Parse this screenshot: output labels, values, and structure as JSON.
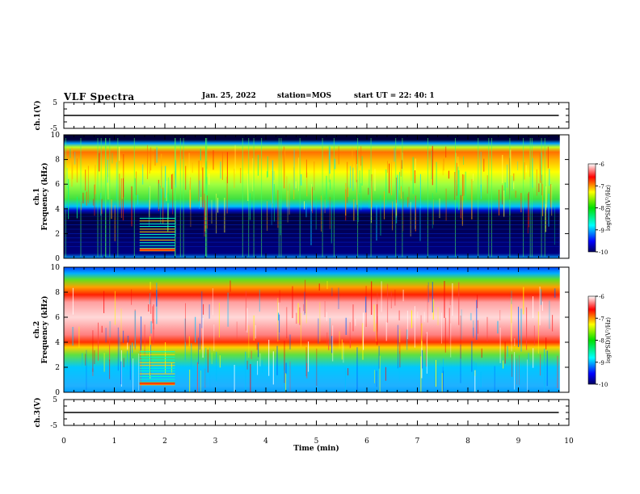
{
  "header": {
    "title": "VLF Spectra",
    "date": "Jan. 25, 2022",
    "station": "station=MOS",
    "start": "start UT =  22: 40: 1"
  },
  "chart_data": [
    {
      "type": "line",
      "ylabel": "ch.1(V)",
      "yticks": [
        "5",
        "-5"
      ],
      "ylim": [
        -5,
        5
      ],
      "x": [
        0,
        1,
        2,
        3,
        4,
        5,
        6,
        7,
        8,
        9,
        9.8
      ],
      "values": [
        0,
        0,
        0,
        0,
        0,
        0,
        0,
        0,
        0,
        0,
        0
      ]
    },
    {
      "type": "heatmap",
      "ylabel": "ch.1\nFrequency (kHz)",
      "ylim": [
        0,
        10
      ],
      "yticks": [
        "0",
        "2",
        "4",
        "6",
        "8",
        "10"
      ],
      "colorbar": {
        "label": "log(PSD)(V²/Hz)",
        "ticks": [
          "-6",
          "-7",
          "-8",
          "-9",
          "-10"
        ],
        "range": [
          -10,
          -6
        ]
      }
    },
    {
      "type": "heatmap",
      "ylabel": "ch.2\nFrequency (kHz)",
      "ylim": [
        0,
        10
      ],
      "yticks": [
        "0",
        "2",
        "4",
        "6",
        "8",
        "10"
      ],
      "colorbar": {
        "label": "log(PSD)(V²/Hz)",
        "ticks": [
          "-6",
          "-7",
          "-8",
          "-9",
          "-10"
        ],
        "range": [
          -10,
          -6
        ]
      }
    },
    {
      "type": "line",
      "ylabel": "ch.3(V)",
      "yticks": [
        "5",
        "-5"
      ],
      "ylim": [
        -5,
        5
      ],
      "x": [
        0,
        1,
        2,
        3,
        4,
        5,
        6,
        7,
        8,
        9,
        9.8
      ],
      "values": [
        0,
        0,
        0,
        0,
        0,
        0,
        0,
        0,
        0,
        0,
        0
      ]
    }
  ],
  "xaxis": {
    "xlabel": "Time (min)",
    "xlim": [
      0,
      10
    ],
    "ticks": [
      "0",
      "1",
      "2",
      "3",
      "4",
      "5",
      "6",
      "7",
      "8",
      "9",
      "10"
    ]
  },
  "colors": {
    "red": "#ff0000",
    "yellow": "#ffff00",
    "green": "#00d000",
    "cyan": "#00ffff",
    "blue": "#0000ff",
    "navy": "#000050"
  }
}
